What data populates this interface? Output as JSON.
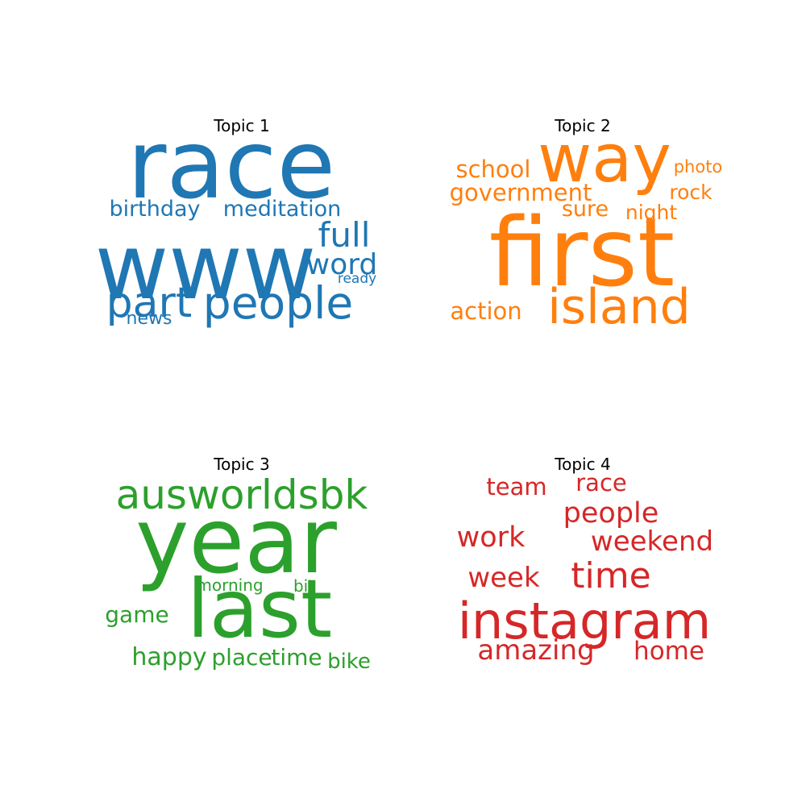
{
  "chart_data": [
    {
      "type": "wordcloud",
      "title": "Topic 1",
      "color": "#1f77b4",
      "words": [
        {
          "text": "race",
          "weight": 1.0
        },
        {
          "text": "www",
          "weight": 0.98
        },
        {
          "text": "people",
          "weight": 0.55
        },
        {
          "text": "part",
          "weight": 0.52
        },
        {
          "text": "full",
          "weight": 0.42
        },
        {
          "text": "word",
          "weight": 0.37
        },
        {
          "text": "birthday",
          "weight": 0.3
        },
        {
          "text": "meditation",
          "weight": 0.3
        },
        {
          "text": "news",
          "weight": 0.24
        },
        {
          "text": "ready",
          "weight": 0.2
        }
      ]
    },
    {
      "type": "wordcloud",
      "title": "Topic 2",
      "color": "#ff7f0e",
      "words": [
        {
          "text": "first",
          "weight": 1.0
        },
        {
          "text": "way",
          "weight": 0.85
        },
        {
          "text": "island",
          "weight": 0.6
        },
        {
          "text": "school",
          "weight": 0.3
        },
        {
          "text": "government",
          "weight": 0.3
        },
        {
          "text": "action",
          "weight": 0.3
        },
        {
          "text": "sure",
          "weight": 0.28
        },
        {
          "text": "rock",
          "weight": 0.26
        },
        {
          "text": "night",
          "weight": 0.26
        },
        {
          "text": "photo",
          "weight": 0.22
        }
      ]
    },
    {
      "type": "wordcloud",
      "title": "Topic 3",
      "color": "#2ca02c",
      "words": [
        {
          "text": "year",
          "weight": 1.0
        },
        {
          "text": "last",
          "weight": 0.95
        },
        {
          "text": "ausworldsbk",
          "weight": 0.55
        },
        {
          "text": "happy",
          "weight": 0.3
        },
        {
          "text": "place",
          "weight": 0.28
        },
        {
          "text": "time",
          "weight": 0.28
        },
        {
          "text": "game",
          "weight": 0.28
        },
        {
          "text": "bike",
          "weight": 0.26
        },
        {
          "text": "morning",
          "weight": 0.2
        },
        {
          "text": "bit",
          "weight": 0.2
        }
      ]
    },
    {
      "type": "wordcloud",
      "title": "Topic 4",
      "color": "#d62728",
      "words": [
        {
          "text": "instagram",
          "weight": 1.0
        },
        {
          "text": "time",
          "weight": 0.6
        },
        {
          "text": "people",
          "weight": 0.48
        },
        {
          "text": "work",
          "weight": 0.45
        },
        {
          "text": "amazing",
          "weight": 0.42
        },
        {
          "text": "weekend",
          "weight": 0.42
        },
        {
          "text": "week",
          "weight": 0.42
        },
        {
          "text": "home",
          "weight": 0.4
        },
        {
          "text": "team",
          "weight": 0.38
        },
        {
          "text": "race",
          "weight": 0.36
        }
      ]
    }
  ]
}
